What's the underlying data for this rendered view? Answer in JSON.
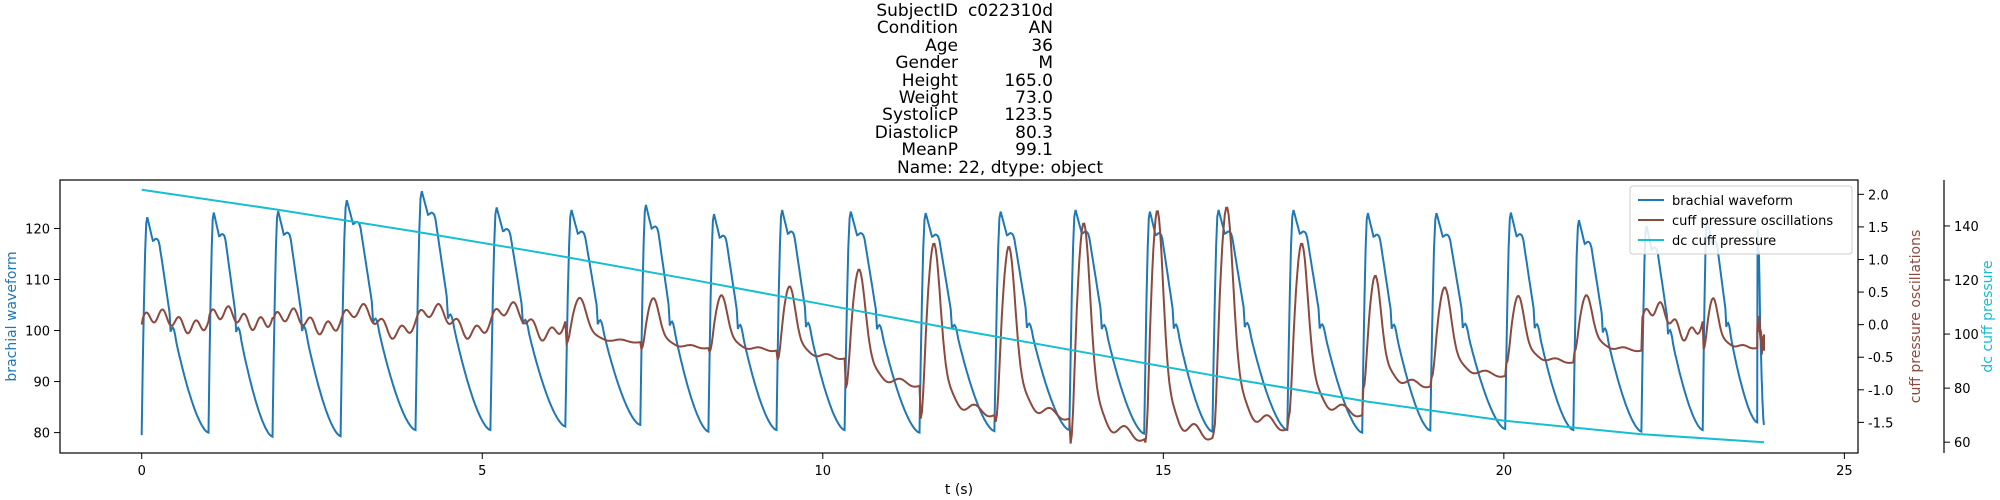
{
  "title_block": {
    "rows": [
      {
        "label": "SubjectID",
        "value": "c022310d"
      },
      {
        "label": "Condition",
        "value": "AN"
      },
      {
        "label": "Age",
        "value": "36"
      },
      {
        "label": "Gender",
        "value": "M"
      },
      {
        "label": "Height",
        "value": "165.0"
      },
      {
        "label": "Weight",
        "value": "73.0"
      },
      {
        "label": "SystolicP",
        "value": "123.5"
      },
      {
        "label": "DiastolicP",
        "value": "80.3"
      },
      {
        "label": "MeanP",
        "value": "99.1"
      }
    ],
    "footer": "Name: 22, dtype: object"
  },
  "chart_data": {
    "type": "line",
    "xlabel": "t (s)",
    "xlim": [
      -1.2,
      25.2
    ],
    "xticks": [
      0,
      5,
      10,
      15,
      20,
      25
    ],
    "grid": false,
    "legend_position": "top-right",
    "axes": {
      "left": {
        "label": "brachial waveform",
        "color": "#1f77b4",
        "ylim": [
          76,
          129.5
        ],
        "ticks": [
          80,
          90,
          100,
          110,
          120
        ]
      },
      "right1": {
        "label": "cuff pressure oscillations",
        "color": "#8c4a3f",
        "ylim": [
          -1.97,
          2.22
        ],
        "ticks": [
          -1.5,
          -1.0,
          -0.5,
          0.0,
          0.5,
          1.0,
          1.5,
          2.0
        ]
      },
      "right2": {
        "label": "dc cuff pressure",
        "color": "#17becf",
        "ylim": [
          56,
          157
        ],
        "ticks": [
          60,
          80,
          100,
          120,
          140
        ]
      }
    },
    "series": [
      {
        "name": "brachial waveform",
        "axis": "left",
        "color": "#1f77b4",
        "baseline_start": [
          0.0,
          79.5
        ],
        "beats": [
          {
            "t": 0.0,
            "peak": 122.4,
            "trough": 80.0
          },
          {
            "t": 0.98,
            "peak": 123.3,
            "trough": 80.0
          },
          {
            "t": 1.92,
            "peak": 123.6,
            "trough": 79.2
          },
          {
            "t": 2.92,
            "peak": 125.7,
            "trough": 79.3
          },
          {
            "t": 4.02,
            "peak": 127.5,
            "trough": 80.5
          },
          {
            "t": 5.12,
            "peak": 124.3,
            "trough": 80.5
          },
          {
            "t": 6.22,
            "peak": 123.8,
            "trough": 81.2
          },
          {
            "t": 7.32,
            "peak": 124.8,
            "trough": 81.5
          },
          {
            "t": 8.32,
            "peak": 123.0,
            "trough": 80.2
          },
          {
            "t": 9.32,
            "peak": 123.8,
            "trough": 80.5
          },
          {
            "t": 10.32,
            "peak": 123.5,
            "trough": 80.5
          },
          {
            "t": 11.42,
            "peak": 123.2,
            "trough": 80.0
          },
          {
            "t": 12.52,
            "peak": 123.5,
            "trough": 80.3
          },
          {
            "t": 13.62,
            "peak": 123.8,
            "trough": 80.5
          },
          {
            "t": 14.72,
            "peak": 123.5,
            "trough": 79.8
          },
          {
            "t": 15.72,
            "peak": 123.8,
            "trough": 80.2
          },
          {
            "t": 16.82,
            "peak": 123.8,
            "trough": 80.5
          },
          {
            "t": 17.92,
            "peak": 123.2,
            "trough": 80.0
          },
          {
            "t": 18.92,
            "peak": 123.2,
            "trough": 80.4
          },
          {
            "t": 20.02,
            "peak": 123.3,
            "trough": 80.7
          },
          {
            "t": 21.02,
            "peak": 121.8,
            "trough": 80.5
          },
          {
            "t": 22.02,
            "peak": 120.7,
            "trough": 80.2
          },
          {
            "t": 22.92,
            "peak": 122.0,
            "trough": 80.5
          },
          {
            "t": 23.72,
            "peak": 120.0,
            "trough": 82.0
          }
        ],
        "end": [
          23.82,
          81.5
        ]
      },
      {
        "name": "cuff pressure oscillations",
        "axis": "right1",
        "color": "#8c4a3f",
        "beats": [
          {
            "t": 0.0,
            "amp": 0.15,
            "base": 0.05
          },
          {
            "t": 0.98,
            "amp": 0.15,
            "base": 0.1
          },
          {
            "t": 1.92,
            "amp": 0.18,
            "base": 0.05
          },
          {
            "t": 2.92,
            "amp": 0.3,
            "base": 0.05
          },
          {
            "t": 4.02,
            "amp": 0.3,
            "base": 0.05
          },
          {
            "t": 5.12,
            "amp": 0.35,
            "base": 0.05
          },
          {
            "t": 6.22,
            "amp": 0.4,
            "base": 0.05
          },
          {
            "t": 7.32,
            "amp": 0.45,
            "base": 0.0
          },
          {
            "t": 8.32,
            "amp": 0.5,
            "base": 0.0
          },
          {
            "t": 9.32,
            "amp": 0.65,
            "base": 0.0
          },
          {
            "t": 10.32,
            "amp": 1.05,
            "base": -0.1
          },
          {
            "t": 11.42,
            "amp": 1.55,
            "base": -0.15
          },
          {
            "t": 12.52,
            "amp": 1.55,
            "base": -0.2
          },
          {
            "t": 13.62,
            "amp": 1.95,
            "base": -0.2
          },
          {
            "t": 14.72,
            "amp": 2.05,
            "base": -0.1
          },
          {
            "t": 15.72,
            "amp": 2.0,
            "base": 0.0
          },
          {
            "t": 16.82,
            "amp": 1.55,
            "base": -0.15
          },
          {
            "t": 17.92,
            "amp": 1.0,
            "base": -0.15
          },
          {
            "t": 18.92,
            "amp": 0.8,
            "base": -0.15
          },
          {
            "t": 20.02,
            "amp": 0.6,
            "base": -0.1
          },
          {
            "t": 21.02,
            "amp": 0.5,
            "base": 0.0
          },
          {
            "t": 22.02,
            "amp": 0.35,
            "base": 0.05
          },
          {
            "t": 22.92,
            "amp": 0.45,
            "base": 0.0
          },
          {
            "t": 23.72,
            "amp": 0.3,
            "base": -0.15
          }
        ],
        "start": [
          0.0,
          0.0
        ],
        "end": [
          23.82,
          -0.4
        ]
      },
      {
        "name": "dc cuff pressure",
        "axis": "right2",
        "color": "#17becf",
        "x": [
          0.0,
          2.0,
          4.0,
          6.0,
          8.0,
          10.0,
          12.0,
          14.0,
          16.0,
          18.0,
          20.0,
          22.0,
          23.82
        ],
        "y": [
          153.4,
          146.0,
          138.0,
          129.5,
          120.5,
          111.0,
          101.5,
          92.5,
          83.5,
          75.0,
          68.0,
          63.0,
          60.0
        ]
      }
    ],
    "legend": [
      "brachial waveform",
      "cuff pressure oscillations",
      "dc cuff pressure"
    ]
  }
}
